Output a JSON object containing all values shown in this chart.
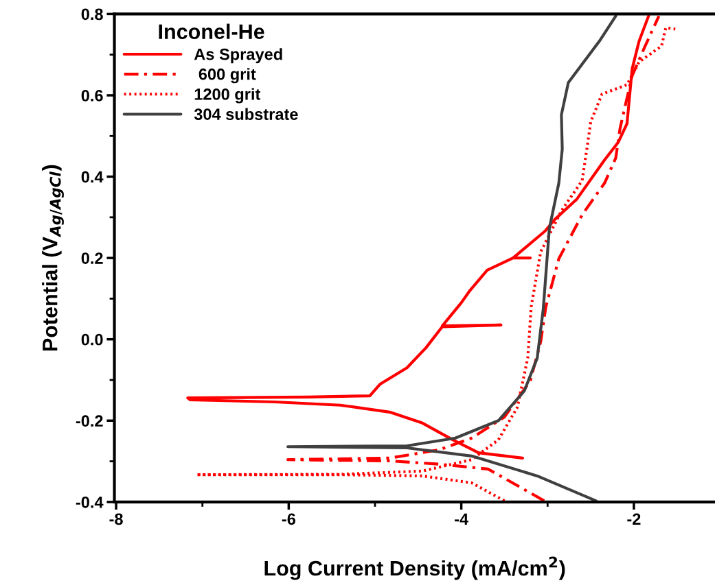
{
  "chart_data": {
    "type": "line",
    "xlabel": "Log Current Density (mA/cm$^{2}$)",
    "ylabel": "Potential (V$_{Ag/AgCl}$)",
    "legend_title": "Inconel-He",
    "legend": "top left",
    "grid": false,
    "marker": "none",
    "xlim": [
      -8.02,
      -1.06
    ],
    "ylim": [
      -0.4,
      0.8
    ],
    "xticks": [
      -8,
      {
        "value": -7,
        "label": null
      },
      -6,
      {
        "value": -5,
        "label": null
      },
      -4,
      {
        "value": -3,
        "label": null
      },
      -2
    ],
    "yticks": [
      {
        "value": -0.4,
        "label": "-0.4"
      },
      {
        "value": -0.3,
        "label": null
      },
      {
        "value": -0.2,
        "label": "-0.2"
      },
      {
        "value": -0.1,
        "label": null
      },
      {
        "value": 0.0,
        "label": "0.0"
      },
      {
        "value": 0.1,
        "label": null
      },
      0.2,
      {
        "value": 0.3,
        "label": null
      },
      0.4,
      {
        "value": 0.5,
        "label": null
      },
      0.6,
      {
        "value": 0.7,
        "label": null
      },
      0.8
    ],
    "series": [
      {
        "name": "As Sprayed",
        "color": "#ff0000",
        "line_style": "solid",
        "x": [
          -3.29,
          -3.8,
          -4.1,
          -4.45,
          -4.83,
          -5.4,
          -6.16,
          -7.14,
          -7.17,
          -5.78,
          -5.06,
          -4.94,
          -4.63,
          -4.41,
          -4.22,
          -3.54,
          -4.22,
          -4.0,
          -3.9,
          -3.7,
          -3.4,
          -3.2,
          -3.4,
          -3.03,
          -2.92,
          -2.66,
          -2.34,
          -2.18,
          -2.08,
          -2.02,
          -1.94,
          -1.83
        ],
        "values": [
          -0.292,
          -0.279,
          -0.247,
          -0.206,
          -0.179,
          -0.162,
          -0.154,
          -0.149,
          -0.144,
          -0.142,
          -0.139,
          -0.11,
          -0.07,
          -0.021,
          0.031,
          0.035,
          0.033,
          0.09,
          0.12,
          0.17,
          0.2,
          0.2,
          0.2,
          0.266,
          0.294,
          0.345,
          0.441,
          0.485,
          0.53,
          0.665,
          0.733,
          0.795
        ]
      },
      {
        "name": " 600 grit",
        "color": "#ff0000",
        "line_style": "dashdot",
        "x": [
          -3.04,
          -3.69,
          -4.26,
          -4.83,
          -6.01,
          -4.83,
          -4.26,
          -3.88,
          -3.5,
          -3.2,
          -3.08,
          -3.02,
          -2.87,
          -2.6,
          -2.34,
          -2.21,
          -2.16,
          -2.08,
          -2.02,
          -1.87,
          -1.71
        ],
        "values": [
          -0.397,
          -0.319,
          -0.307,
          -0.299,
          -0.296,
          -0.292,
          -0.272,
          -0.243,
          -0.191,
          -0.102,
          -0.006,
          0.08,
          0.198,
          0.306,
          0.384,
          0.446,
          0.519,
          0.593,
          0.648,
          0.721,
          0.795
        ]
      },
      {
        "name": "1200 grit",
        "color": "#ff0000",
        "line_style": "dotted",
        "x": [
          -3.5,
          -3.88,
          -4.45,
          -5.4,
          -7.07,
          -5.4,
          -4.45,
          -3.88,
          -3.57,
          -3.35,
          -3.23,
          -3.19,
          -3.08,
          -2.84,
          -2.6,
          -2.54,
          -2.5,
          -2.37,
          -2.08,
          -1.94,
          -1.68,
          -1.63,
          -1.52
        ],
        "values": [
          -0.397,
          -0.353,
          -0.336,
          -0.333,
          -0.333,
          -0.332,
          -0.324,
          -0.296,
          -0.247,
          -0.167,
          -0.046,
          0.08,
          0.215,
          0.316,
          0.39,
          0.475,
          0.535,
          0.603,
          0.626,
          0.682,
          0.721,
          0.766,
          0.763
        ]
      },
      {
        "name": "304 substrate",
        "color": "#404040",
        "line_style": "solid",
        "x": [
          -2.44,
          -3.12,
          -3.88,
          -4.63,
          -6.01,
          -4.63,
          -4.07,
          -3.57,
          -3.27,
          -3.12,
          -3.05,
          -2.98,
          -2.87,
          -2.83,
          -2.84,
          -2.76,
          -2.58,
          -2.4,
          -2.21
        ],
        "values": [
          -0.397,
          -0.336,
          -0.287,
          -0.267,
          -0.264,
          -0.262,
          -0.243,
          -0.2,
          -0.127,
          -0.046,
          0.075,
          0.272,
          0.384,
          0.468,
          0.552,
          0.631,
          0.682,
          0.733,
          0.795
        ]
      }
    ]
  }
}
